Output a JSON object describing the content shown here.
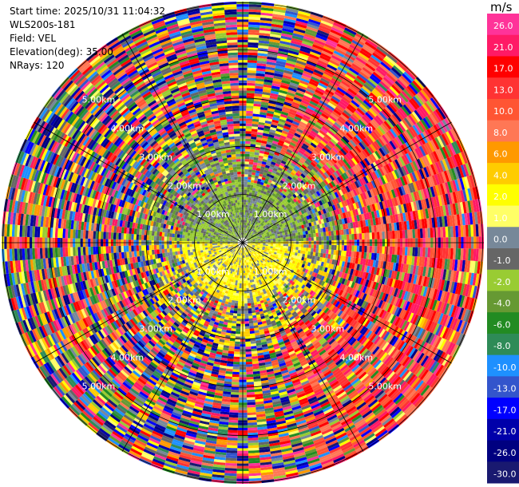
{
  "info": {
    "start_time": "Start time: 2025/10/31 11:04:32",
    "instrument": "WLS200s-181",
    "field": "Field: VEL",
    "elevation": "Elevation(deg): 35.00",
    "nrays": "NRays: 120"
  },
  "colorbar": {
    "title": "m/s",
    "ticks": [
      "26.0",
      "21.0",
      "17.0",
      "13.0",
      "10.0",
      "8.0",
      "6.0",
      "4.0",
      "2.0",
      "1.0",
      "0.0",
      "-1.0",
      "-2.0",
      "-4.0",
      "-6.0",
      "-8.0",
      "-10.0",
      "-13.0",
      "-17.0",
      "-21.0",
      "-26.0",
      "-30.0"
    ],
    "colors": [
      "#ff3399",
      "#ff1a66",
      "#ff0000",
      "#ff3333",
      "#ff5533",
      "#ff7755",
      "#ff9900",
      "#ffcc00",
      "#ffff00",
      "#ffff66",
      "#778899",
      "#666666",
      "#99cc33",
      "#669933",
      "#228b22",
      "#2e8b57",
      "#1e90ff",
      "#3355cc",
      "#0000ff",
      "#0000aa",
      "#000080",
      "#191970"
    ]
  },
  "chart_data": {
    "type": "ppi",
    "field": "VEL",
    "units": "m/s",
    "elevation_deg": 35.0,
    "n_rays": 120,
    "range_rings_km": [
      1.0,
      2.0,
      3.0,
      4.0,
      5.0
    ],
    "ring_labels": [
      "1.00km",
      "2.00km",
      "3.00km",
      "4.00km",
      "5.00km"
    ],
    "color_scale_min": -30.0,
    "color_scale_max": 26.0,
    "pattern": {
      "near_range_north": "-2.0 to 0.0",
      "near_range_south": "1.0 to 4.0",
      "east_far_range": "13.0 to 26.0",
      "far_range": "noise"
    }
  }
}
